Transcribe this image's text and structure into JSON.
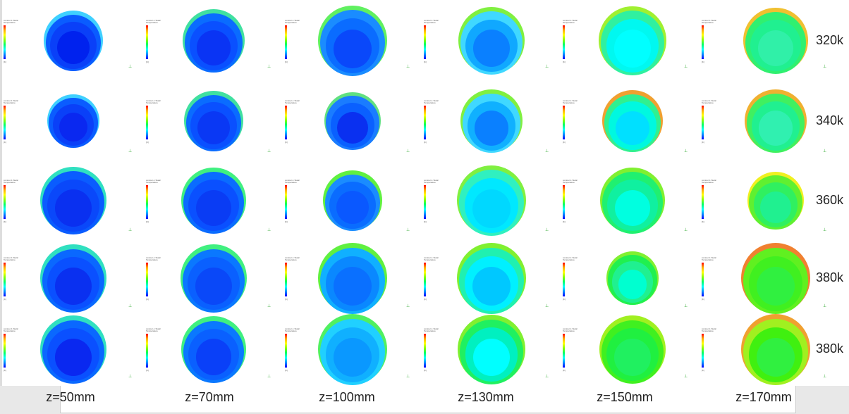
{
  "row_labels": [
    "320k",
    "340k",
    "360k",
    "380k",
    "380k"
  ],
  "column_labels": [
    "z=50mm",
    "z=70mm",
    "z=100mm",
    "z=130mm",
    "z=150mm",
    "z=170mm"
  ],
  "legend": {
    "title": "contour-1 Static Temperature",
    "unit": "[K]"
  },
  "cells": [
    [
      [
        "#3fd0ff",
        "#0a5cff",
        "#0a40f8",
        "#0022ee"
      ],
      [
        "#40e0a0",
        "#0a6cff",
        "#0a50ff",
        "#0a34f4"
      ],
      [
        "#60f060",
        "#1a8cff",
        "#0a6cff",
        "#0a48fa"
      ],
      [
        "#80f040",
        "#40d8ff",
        "#10a8ff",
        "#0a80ff"
      ],
      [
        "#a0f030",
        "#30f0a0",
        "#00f8f0",
        "#00ffff"
      ],
      [
        "#f0c030",
        "#30f070",
        "#20f090",
        "#30f0a8"
      ]
    ],
    [
      [
        "#3fd0ff",
        "#0a5cff",
        "#0a40f8",
        "#0a28f0"
      ],
      [
        "#40e0a0",
        "#0a6cff",
        "#0a50ff",
        "#0a38f4"
      ],
      [
        "#60e080",
        "#1a7cff",
        "#0a60ff",
        "#0a30f0"
      ],
      [
        "#80f040",
        "#40d8ff",
        "#10b0ff",
        "#0a80ff"
      ],
      [
        "#f0a030",
        "#30f090",
        "#00f8e0",
        "#00e0ff"
      ],
      [
        "#f0b030",
        "#40f060",
        "#20f090",
        "#30f0b0"
      ]
    ],
    [
      [
        "#30e0c0",
        "#0a5cff",
        "#0a48fa",
        "#0a30f0"
      ],
      [
        "#40f080",
        "#0a6cff",
        "#0a50ff",
        "#0a3cf4"
      ],
      [
        "#60f040",
        "#1a8cff",
        "#0a6cff",
        "#0a58ff"
      ],
      [
        "#80f040",
        "#30f0c0",
        "#00e8ff",
        "#00d8ff"
      ],
      [
        "#80f030",
        "#20f070",
        "#10f0a0",
        "#00ffe0"
      ],
      [
        "#f0f020",
        "#60f030",
        "#30f060",
        "#20f090"
      ]
    ],
    [
      [
        "#30e0c0",
        "#0a68ff",
        "#0a50ff",
        "#0a30f0"
      ],
      [
        "#40f080",
        "#0a78ff",
        "#0a60ff",
        "#0a48f8"
      ],
      [
        "#60f040",
        "#10b0ff",
        "#0a88ff",
        "#0a70ff"
      ],
      [
        "#80f030",
        "#20f0b0",
        "#00f0ff",
        "#00c8ff"
      ],
      [
        "#80f030",
        "#20f050",
        "#20f090",
        "#00ffd0"
      ],
      [
        "#f08030",
        "#60f020",
        "#40f020",
        "#30f040"
      ]
    ],
    [
      [
        "#30e0c0",
        "#0a68ff",
        "#0a50ff",
        "#0a28f0"
      ],
      [
        "#40f080",
        "#0a78ff",
        "#0a60ff",
        "#0a40f8"
      ],
      [
        "#50f060",
        "#20d0ff",
        "#10b0ff",
        "#0a98ff"
      ],
      [
        "#80f030",
        "#20f060",
        "#00f0c0",
        "#00ffff"
      ],
      [
        "#a0f020",
        "#40f020",
        "#20f040",
        "#20f060"
      ],
      [
        "#f0a030",
        "#a0f020",
        "#40f010",
        "#30f040"
      ]
    ]
  ]
}
